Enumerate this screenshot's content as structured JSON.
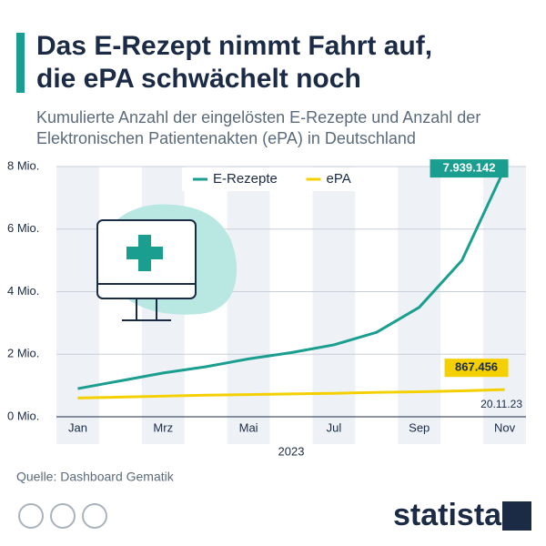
{
  "chart_data": {
    "type": "line",
    "title": "Das E-Rezept nimmt Fahrt auf, die ePA schwächelt noch",
    "subtitle": "Kumulierte Anzahl der eingelösten E-Rezepte und Anzahl der Elektronischen Patientenakten (ePA) in Deutschland",
    "x_label": "2023",
    "categories": [
      "Jan",
      null,
      "Mrz",
      null,
      "Mai",
      null,
      "Jul",
      null,
      "Sep",
      null,
      "Nov"
    ],
    "series": [
      {
        "name": "E-Rezepte",
        "color": "#1a9e8f",
        "values": [
          900000,
          1150000,
          1400000,
          1600000,
          1850000,
          2050000,
          2300000,
          2700000,
          3500000,
          5000000,
          7939142
        ],
        "value_labels": [
          null,
          null,
          null,
          null,
          null,
          null,
          null,
          null,
          null,
          null,
          "7.939.142"
        ]
      },
      {
        "name": "ePA",
        "color": "#f5d000",
        "values": [
          600000,
          630000,
          660000,
          690000,
          710000,
          730000,
          750000,
          780000,
          800000,
          830000,
          867456
        ],
        "value_labels": [
          null,
          null,
          null,
          null,
          null,
          null,
          null,
          null,
          null,
          null,
          "867.456"
        ]
      }
    ],
    "ylim": [
      0,
      8000000
    ],
    "yticks": [
      {
        "value": 0,
        "label": "0 Mio."
      },
      {
        "value": 2000000,
        "label": "2 Mio."
      },
      {
        "value": 4000000,
        "label": "4 Mio."
      },
      {
        "value": 6000000,
        "label": "6 Mio."
      },
      {
        "value": 8000000,
        "label": "8 Mio."
      }
    ],
    "grid": true,
    "legend": "top",
    "annotation": "20.11.23",
    "source": "Quelle: Dashboard Gematik",
    "brand": "statista"
  }
}
